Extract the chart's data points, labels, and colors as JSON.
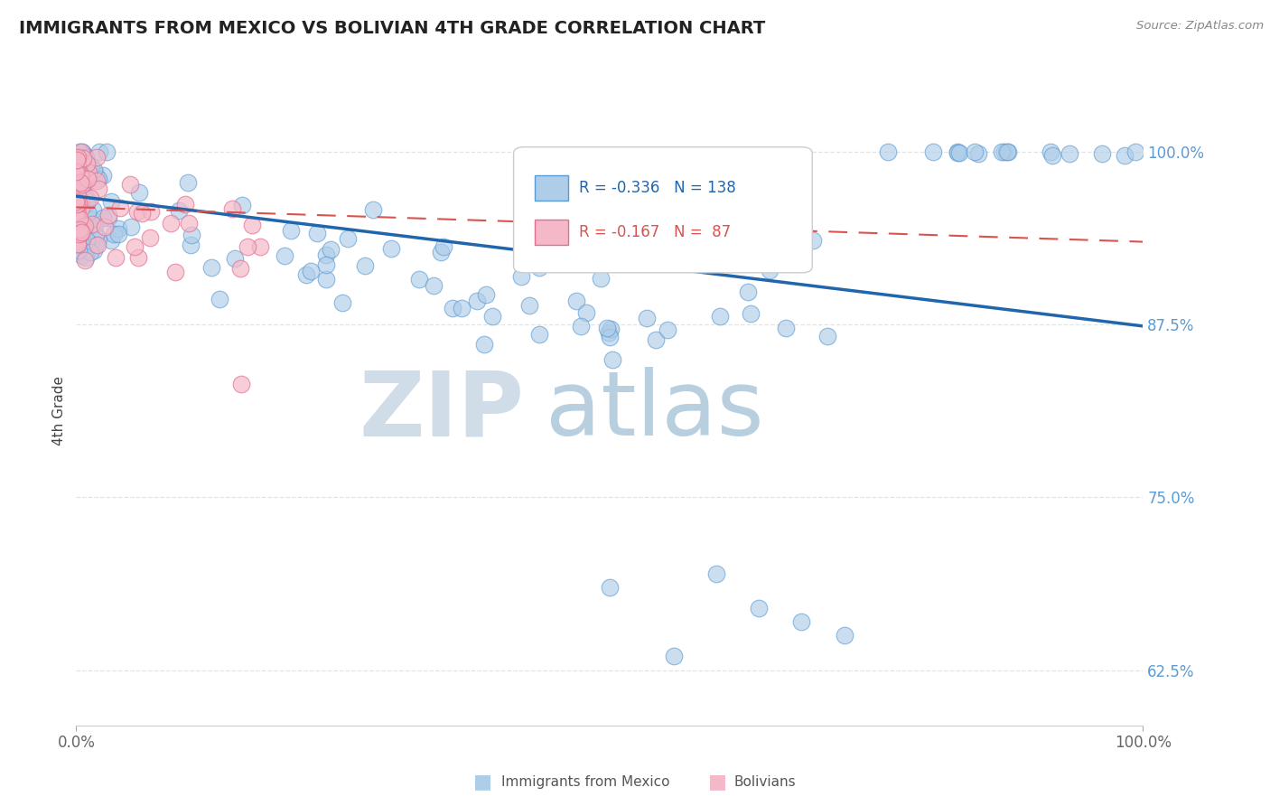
{
  "title": "IMMIGRANTS FROM MEXICO VS BOLIVIAN 4TH GRADE CORRELATION CHART",
  "source_text": "Source: ZipAtlas.com",
  "ylabel": "4th Grade",
  "x_tick_labels": [
    "0.0%",
    "100.0%"
  ],
  "y_tick_labels": [
    "62.5%",
    "75.0%",
    "87.5%",
    "100.0%"
  ],
  "y_tick_values": [
    0.625,
    0.75,
    0.875,
    1.0
  ],
  "x_lim": [
    0.0,
    1.0
  ],
  "y_lim": [
    0.585,
    1.04
  ],
  "legend_r1": "R = -0.336",
  "legend_n1": "N = 138",
  "legend_r2": "R = -0.167",
  "legend_n2": "N =  87",
  "color_blue": "#aecde8",
  "color_blue_edge": "#5b9bd5",
  "color_blue_line": "#2166ac",
  "color_pink": "#f4b8c8",
  "color_pink_edge": "#e07090",
  "color_pink_line": "#d9534f",
  "color_title": "#222222",
  "watermark_zip": "ZIP",
  "watermark_atlas": "atlas",
  "watermark_color_zip": "#d0dce8",
  "watermark_color_atlas": "#b8cfe0",
  "background_color": "#ffffff",
  "grid_color": "#dddddd",
  "right_label_color": "#5b9bd5",
  "source_color": "#888888",
  "tick_color": "#666666",
  "ylabel_color": "#444444",
  "blue_line_start_y": 0.968,
  "blue_line_end_y": 0.874,
  "pink_line_start_y": 0.96,
  "pink_line_end_y": 0.935
}
